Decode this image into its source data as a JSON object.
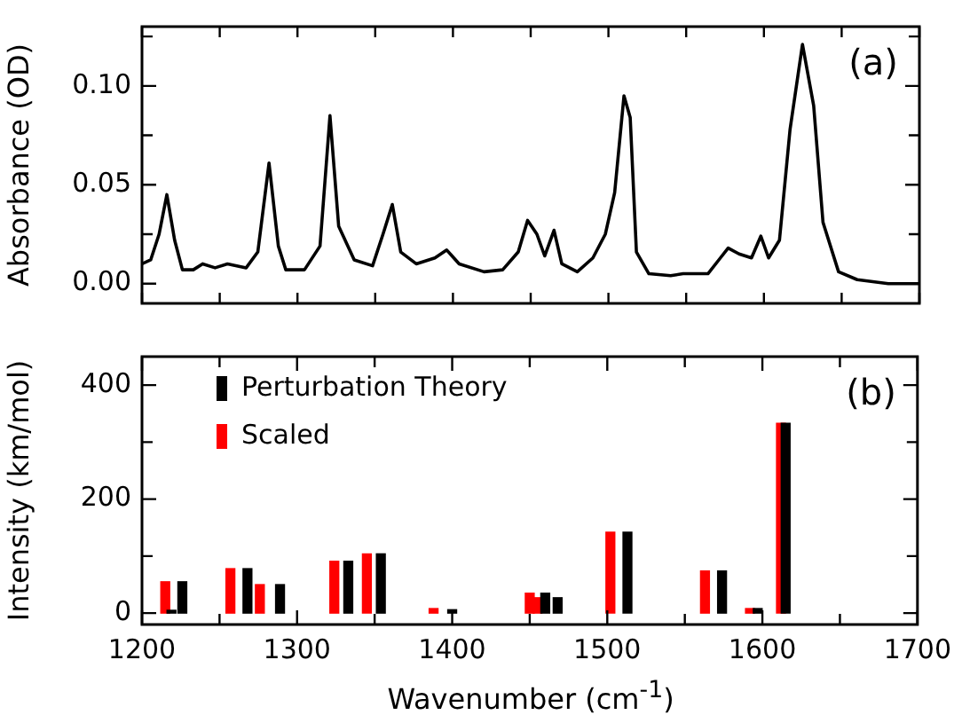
{
  "chart_data": [
    {
      "type": "line",
      "ylabel": "Absorbance (OD)",
      "annotations": [
        "(a)"
      ],
      "legend": false,
      "marker": "none",
      "tick_labels": "y",
      "xlim": [
        1200,
        1700
      ],
      "ylim": [
        -0.01,
        0.13
      ],
      "xticks": [
        {
          "value": 1200,
          "label": null
        },
        {
          "value": 1250,
          "label": null
        },
        {
          "value": 1300,
          "label": null
        },
        {
          "value": 1350,
          "label": null
        },
        {
          "value": 1400,
          "label": null
        },
        {
          "value": 1450,
          "label": null
        },
        {
          "value": 1500,
          "label": null
        },
        {
          "value": 1550,
          "label": null
        },
        {
          "value": 1600,
          "label": null
        },
        {
          "value": 1650,
          "label": null
        },
        {
          "value": 1700,
          "label": null
        }
      ],
      "yticks": [
        {
          "value": 0,
          "label": "0.00"
        },
        {
          "value": 0.025,
          "label": null
        },
        {
          "value": 0.05,
          "label": "0.05"
        },
        {
          "value": 0.075,
          "label": null
        },
        {
          "value": 0.1,
          "label": "0.10"
        },
        {
          "value": 0.125,
          "label": null
        }
      ],
      "series": [
        {
          "color": "#000000",
          "x": [
            1200,
            1205.6,
            1211,
            1216,
            1221,
            1226,
            1233,
            1239,
            1247,
            1255,
            1267,
            1274.5,
            1281.7,
            1287.7,
            1292.5,
            1304.5,
            1314.5,
            1320.9,
            1326.5,
            1336.5,
            1348.3,
            1355,
            1361,
            1366.4,
            1376.4,
            1388.4,
            1396,
            1404,
            1420,
            1432,
            1442,
            1448,
            1454,
            1459,
            1465,
            1470,
            1480,
            1490,
            1498,
            1504,
            1510,
            1514,
            1518,
            1526,
            1540,
            1548,
            1564,
            1572,
            1577,
            1584,
            1592,
            1598,
            1603,
            1610,
            1616.8,
            1624.8,
            1632,
            1638,
            1648,
            1660,
            1680,
            1700
          ],
          "values": [
            0.01,
            0.012,
            0.025,
            0.045,
            0.022,
            0.007,
            0.007,
            0.01,
            0.008,
            0.01,
            0.008,
            0.016,
            0.061,
            0.019,
            0.007,
            0.007,
            0.019,
            0.085,
            0.029,
            0.012,
            0.009,
            0.025,
            0.04,
            0.016,
            0.01,
            0.013,
            0.017,
            0.01,
            0.006,
            0.007,
            0.016,
            0.032,
            0.025,
            0.014,
            0.027,
            0.01,
            0.006,
            0.013,
            0.025,
            0.046,
            0.095,
            0.084,
            0.016,
            0.005,
            0.004,
            0.005,
            0.005,
            0.013,
            0.018,
            0.015,
            0.013,
            0.024,
            0.013,
            0.022,
            0.078,
            0.121,
            0.09,
            0.031,
            0.006,
            0.002,
            0.0,
            0.0
          ]
        }
      ]
    },
    {
      "type": "bar",
      "xlabel": "Wavenumber (cm$^{-1}$)",
      "ylabel": "Intensity (km/mol)",
      "annotations": [
        "(b)"
      ],
      "legend": "top left",
      "xlim": [
        1200,
        1700
      ],
      "ylim": [
        -20,
        450
      ],
      "xticks": [
        1200,
        {
          "value": 1250,
          "label": null
        },
        1300,
        {
          "value": 1350,
          "label": null
        },
        1400,
        {
          "value": 1450,
          "label": null
        },
        1500,
        {
          "value": 1550,
          "label": null
        },
        1600,
        {
          "value": 1650,
          "label": null
        },
        1700
      ],
      "yticks": [
        0,
        {
          "value": 100,
          "label": null
        },
        200,
        {
          "value": 300,
          "label": null
        },
        400
      ],
      "series": [
        {
          "name": "Perturbation Theory",
          "color": "#000000",
          "x": [
            1219,
            1226,
            1268,
            1289,
            1333,
            1354,
            1400,
            1460,
            1468,
            1513,
            1574,
            1597,
            1615
          ],
          "values": [
            5,
            55,
            78,
            50,
            91,
            104,
            6,
            35,
            27,
            142,
            74,
            8,
            333
          ]
        },
        {
          "name": "Scaled",
          "color": "#ff0000",
          "x": [
            1215,
            1257,
            1276,
            1324,
            1345,
            1388,
            1450,
            1455,
            1502,
            1563,
            1592,
            1612
          ],
          "values": [
            55,
            78,
            50,
            91,
            104,
            8,
            35,
            27,
            142,
            74,
            8,
            333
          ]
        }
      ]
    }
  ]
}
